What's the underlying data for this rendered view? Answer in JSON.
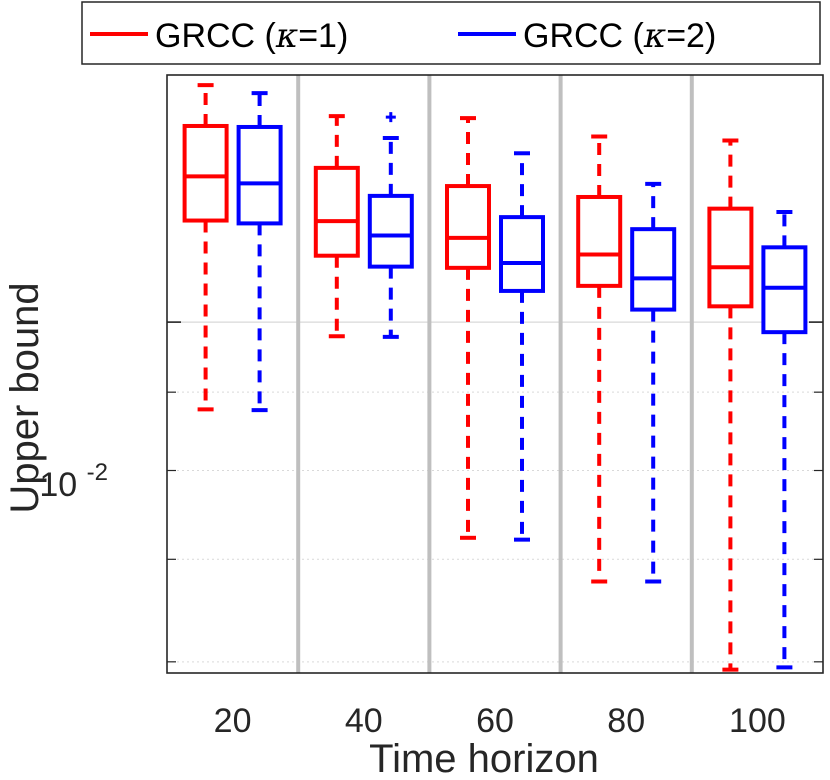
{
  "chart_data": {
    "type": "box",
    "title": "",
    "xlabel": "Time horizon",
    "ylabel": "Upper bound",
    "yscale": "log",
    "ylim": [
      0.0059,
      0.0145
    ],
    "y_tick_label": {
      "base": "10",
      "exponent": "-2"
    },
    "categories": [
      "20",
      "40",
      "60",
      "80",
      "100"
    ],
    "grid": true,
    "legend_position": "top",
    "colors": {
      "series_1": "#ff0000",
      "series_2": "#0000ff",
      "separator": "#bfbfbf",
      "grid": "#d9d9d9"
    },
    "series": [
      {
        "name": "GRCC (",
        "kappa_label": "κ",
        "kappa_value": "=1)",
        "boxes": [
          {
            "whisker_low": 0.00877,
            "q1": 0.01165,
            "median": 0.01245,
            "q3": 0.01343,
            "whisker_high": 0.01428
          },
          {
            "whisker_low": 0.00979,
            "q1": 0.01105,
            "median": 0.01164,
            "q3": 0.01261,
            "whisker_high": 0.01363
          },
          {
            "whisker_low": 0.00723,
            "q1": 0.01085,
            "median": 0.01135,
            "q3": 0.01227,
            "whisker_high": 0.01359
          },
          {
            "whisker_low": 0.00677,
            "q1": 0.01056,
            "median": 0.01107,
            "q3": 0.01207,
            "whisker_high": 0.01322
          },
          {
            "whisker_low": 0.00593,
            "q1": 0.01024,
            "median": 0.01086,
            "q3": 0.01186,
            "whisker_high": 0.01314
          }
        ],
        "outliers": []
      },
      {
        "name": "GRCC (",
        "kappa_label": "κ",
        "kappa_value": "=2)",
        "boxes": [
          {
            "whisker_low": 0.00876,
            "q1": 0.0116,
            "median": 0.01232,
            "q3": 0.01341,
            "whisker_high": 0.01411
          },
          {
            "whisker_low": 0.00978,
            "q1": 0.01087,
            "median": 0.01139,
            "q3": 0.01209,
            "whisker_high": 0.01319
          },
          {
            "whisker_low": 0.00721,
            "q1": 0.01048,
            "median": 0.01093,
            "q3": 0.01171,
            "whisker_high": 0.01289
          },
          {
            "whisker_low": 0.00677,
            "q1": 0.01019,
            "median": 0.01068,
            "q3": 0.0115,
            "whisker_high": 0.01231
          },
          {
            "whisker_low": 0.00595,
            "q1": 0.00985,
            "median": 0.01053,
            "q3": 0.01119,
            "whisker_high": 0.0118
          }
        ],
        "outliers": [
          {
            "category": "40",
            "value": 0.01361
          }
        ]
      }
    ]
  }
}
